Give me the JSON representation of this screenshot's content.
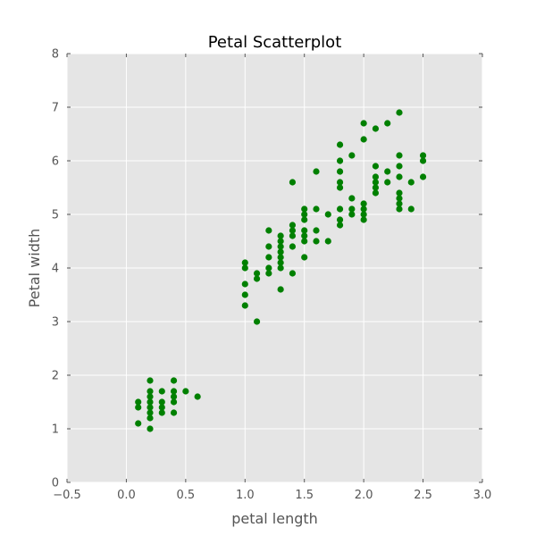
{
  "chart_data": {
    "type": "scatter",
    "title": "Petal Scatterplot",
    "xlabel": "petal length",
    "ylabel": "Petal width",
    "xlim": [
      -0.5,
      3.0
    ],
    "ylim": [
      0,
      8
    ],
    "x_ticks": [
      "−0.5",
      "0.0",
      "0.5",
      "1.0",
      "1.5",
      "2.0",
      "2.5",
      "3.0"
    ],
    "y_ticks": [
      "0",
      "1",
      "2",
      "3",
      "4",
      "5",
      "6",
      "7",
      "8"
    ],
    "grid": true,
    "background_color": "#e5e5e5",
    "grid_color": "#ffffff",
    "point_color": "#008000",
    "series": [
      {
        "points": [
          [
            0.1,
            1.1
          ],
          [
            0.1,
            1.4
          ],
          [
            0.1,
            1.5
          ],
          [
            0.2,
            1.0
          ],
          [
            0.2,
            1.2
          ],
          [
            0.2,
            1.3
          ],
          [
            0.2,
            1.4
          ],
          [
            0.2,
            1.5
          ],
          [
            0.2,
            1.6
          ],
          [
            0.2,
            1.7
          ],
          [
            0.2,
            1.9
          ],
          [
            0.3,
            1.3
          ],
          [
            0.3,
            1.4
          ],
          [
            0.3,
            1.5
          ],
          [
            0.3,
            1.7
          ],
          [
            0.4,
            1.3
          ],
          [
            0.4,
            1.5
          ],
          [
            0.4,
            1.6
          ],
          [
            0.4,
            1.7
          ],
          [
            0.4,
            1.9
          ],
          [
            0.5,
            1.7
          ],
          [
            0.6,
            1.6
          ],
          [
            1.0,
            3.3
          ],
          [
            1.0,
            3.5
          ],
          [
            1.0,
            3.7
          ],
          [
            1.0,
            4.0
          ],
          [
            1.0,
            4.1
          ],
          [
            1.1,
            3.0
          ],
          [
            1.1,
            3.8
          ],
          [
            1.1,
            3.9
          ],
          [
            1.2,
            3.9
          ],
          [
            1.2,
            4.0
          ],
          [
            1.2,
            4.2
          ],
          [
            1.2,
            4.4
          ],
          [
            1.2,
            4.7
          ],
          [
            1.3,
            3.6
          ],
          [
            1.3,
            4.0
          ],
          [
            1.3,
            4.1
          ],
          [
            1.3,
            4.2
          ],
          [
            1.3,
            4.3
          ],
          [
            1.3,
            4.4
          ],
          [
            1.3,
            4.5
          ],
          [
            1.3,
            4.6
          ],
          [
            1.4,
            3.9
          ],
          [
            1.4,
            4.4
          ],
          [
            1.4,
            4.6
          ],
          [
            1.4,
            4.7
          ],
          [
            1.4,
            4.8
          ],
          [
            1.4,
            5.6
          ],
          [
            1.5,
            4.2
          ],
          [
            1.5,
            4.5
          ],
          [
            1.5,
            4.6
          ],
          [
            1.5,
            4.7
          ],
          [
            1.5,
            4.9
          ],
          [
            1.5,
            5.0
          ],
          [
            1.5,
            5.1
          ],
          [
            1.6,
            4.5
          ],
          [
            1.6,
            4.7
          ],
          [
            1.6,
            5.1
          ],
          [
            1.6,
            5.8
          ],
          [
            1.7,
            4.5
          ],
          [
            1.7,
            5.0
          ],
          [
            1.8,
            4.8
          ],
          [
            1.8,
            4.9
          ],
          [
            1.8,
            5.1
          ],
          [
            1.8,
            5.5
          ],
          [
            1.8,
            5.6
          ],
          [
            1.8,
            5.8
          ],
          [
            1.8,
            6.0
          ],
          [
            1.8,
            6.3
          ],
          [
            1.9,
            5.0
          ],
          [
            1.9,
            5.1
          ],
          [
            1.9,
            5.3
          ],
          [
            1.9,
            6.1
          ],
          [
            2.0,
            4.9
          ],
          [
            2.0,
            5.0
          ],
          [
            2.0,
            5.1
          ],
          [
            2.0,
            5.2
          ],
          [
            2.0,
            6.4
          ],
          [
            2.0,
            6.7
          ],
          [
            2.1,
            5.4
          ],
          [
            2.1,
            5.5
          ],
          [
            2.1,
            5.6
          ],
          [
            2.1,
            5.7
          ],
          [
            2.1,
            5.9
          ],
          [
            2.1,
            6.6
          ],
          [
            2.2,
            5.6
          ],
          [
            2.2,
            5.8
          ],
          [
            2.2,
            6.7
          ],
          [
            2.3,
            5.1
          ],
          [
            2.3,
            5.2
          ],
          [
            2.3,
            5.3
          ],
          [
            2.3,
            5.4
          ],
          [
            2.3,
            5.7
          ],
          [
            2.3,
            5.9
          ],
          [
            2.3,
            6.1
          ],
          [
            2.3,
            6.9
          ],
          [
            2.4,
            5.1
          ],
          [
            2.4,
            5.6
          ],
          [
            2.5,
            5.7
          ],
          [
            2.5,
            6.0
          ],
          [
            2.5,
            6.1
          ]
        ]
      }
    ]
  }
}
